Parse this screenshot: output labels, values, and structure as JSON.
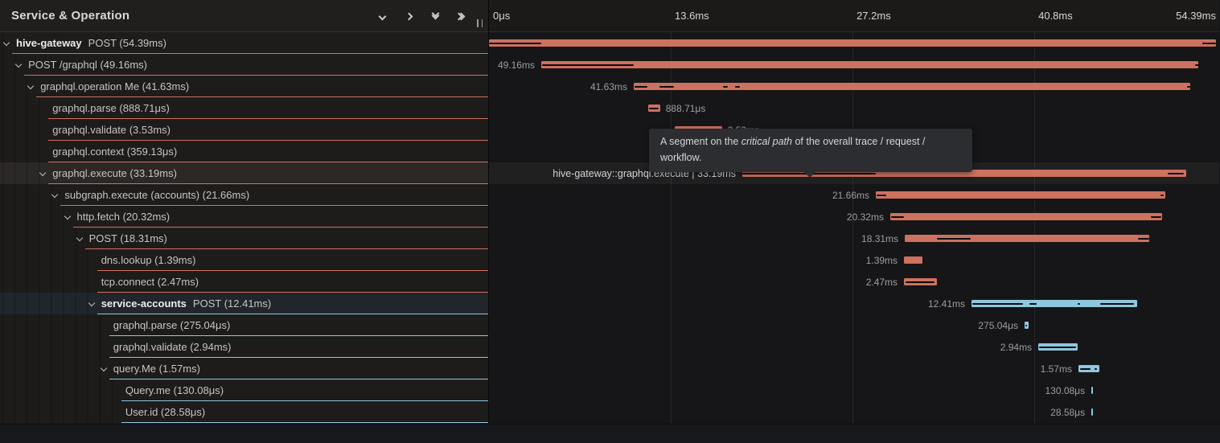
{
  "header": {
    "title": "Service & Operation",
    "ticks": [
      {
        "label": "0μs",
        "ms": 0
      },
      {
        "label": "13.6ms",
        "ms": 13.6
      },
      {
        "label": "27.2ms",
        "ms": 27.2
      },
      {
        "label": "40.8ms",
        "ms": 40.8
      },
      {
        "label": "54.39ms",
        "ms": 54.39,
        "align": "right"
      }
    ],
    "gridlines_ms": [
      13.6,
      27.2,
      40.8
    ],
    "icons": [
      "chevron-down",
      "chevron-right",
      "double-chevron-down",
      "double-chevron-right"
    ]
  },
  "tooltip": {
    "pre": "A segment on the ",
    "italic": "critical path",
    "post_line1": " of the overall trace / request /",
    "line2": "workflow."
  },
  "colors": {
    "salmon": "#ce715f",
    "blue": "#8dc8e0",
    "critical_path": "#0b0b0c"
  },
  "trace": {
    "total_ms": 54.39,
    "rows": [
      {
        "service": "hive-gateway",
        "text": "POST (54.39ms)",
        "level": 0,
        "chevron": true,
        "svc": "salmon",
        "bar": {
          "start": 0,
          "dur": 54.39,
          "label": "",
          "side": "left",
          "critical": [
            [
              0,
              3.91
            ],
            [
              53.35,
              54.39
            ]
          ]
        }
      },
      {
        "text": "POST /graphql (49.16ms)",
        "level": 1,
        "chevron": true,
        "svc": "salmon",
        "bar": {
          "start": 3.91,
          "dur": 49.16,
          "label": "49.16ms",
          "side": "left",
          "critical": [
            [
              3.97,
              10.83
            ],
            [
              52.8,
              53.18
            ]
          ]
        }
      },
      {
        "text": "graphql.operation Me (41.63ms)",
        "level": 2,
        "chevron": true,
        "svc": "salmon",
        "bar": {
          "start": 10.83,
          "dur": 41.63,
          "label": "41.63ms",
          "side": "left",
          "critical": [
            [
              10.89,
              11.85
            ],
            [
              12.76,
              13.84
            ],
            [
              17.5,
              17.88
            ],
            [
              18.41,
              18.78
            ],
            [
              52.2,
              52.46
            ]
          ]
        }
      },
      {
        "text": "graphql.parse (888.71μs)",
        "level": 3,
        "chevron": false,
        "svc": "salmon",
        "bar": {
          "start": 11.91,
          "dur": 0.88871,
          "label": "888.71μs",
          "side": "right",
          "critical": [
            [
              11.98,
              12.72
            ]
          ]
        }
      },
      {
        "text": "graphql.validate (3.53ms)",
        "level": 3,
        "chevron": false,
        "svc": "salmon",
        "bar": {
          "start": 13.9,
          "dur": 3.53,
          "label": "3.53ms",
          "side": "right",
          "critical": [
            [
              13.98,
              17.32
            ]
          ]
        }
      },
      {
        "text": "graphql.context (359.13μs)",
        "level": 3,
        "chevron": false,
        "svc": "salmon",
        "bar": {
          "start": 17.45,
          "dur": 0.35913,
          "label": "359.13μs",
          "side": "right",
          "critical": [
            [
              17.5,
              17.72
            ]
          ]
        }
      },
      {
        "text": "graphql.execute (33.19ms)",
        "level": 3,
        "chevron": true,
        "svc": "salmon",
        "highlight": true,
        "bar": {
          "start": 18.95,
          "dur": 33.19,
          "label": "hive-gateway::graphql.execute | 33.19ms",
          "side": "left",
          "bright": true,
          "critical": [
            [
              18.98,
              28.95
            ],
            [
              50.78,
              52.0
            ]
          ]
        }
      },
      {
        "text": "subgraph.execute (accounts) (21.66ms)",
        "level": 4,
        "chevron": true,
        "svc": "salmon",
        "bar": {
          "start": 28.94,
          "dur": 21.66,
          "label": "21.66ms",
          "side": "left",
          "critical": [
            [
              29.0,
              29.72
            ],
            [
              50.24,
              50.5
            ]
          ]
        }
      },
      {
        "text": "http.fetch (20.32ms)",
        "level": 5,
        "chevron": true,
        "svc": "salmon",
        "bar": {
          "start": 30.02,
          "dur": 20.32,
          "label": "20.32ms",
          "side": "left",
          "critical": [
            [
              30.08,
              31.05
            ],
            [
              49.52,
              50.3
            ]
          ]
        }
      },
      {
        "text": "POST (18.31ms)",
        "level": 6,
        "chevron": true,
        "svc": "salmon",
        "bar": {
          "start": 31.11,
          "dur": 18.31,
          "label": "18.31ms",
          "side": "left",
          "critical": [
            [
              33.52,
              36.04
            ],
            [
              48.56,
              49.4
            ]
          ]
        }
      },
      {
        "text": "dns.lookup (1.39ms)",
        "level": 7,
        "chevron": false,
        "svc": "salmon",
        "bar": {
          "start": 31.05,
          "dur": 1.39,
          "label": "1.39ms",
          "side": "left",
          "critical": []
        }
      },
      {
        "text": "tcp.connect (2.47ms)",
        "level": 7,
        "chevron": false,
        "svc": "salmon",
        "bar": {
          "start": 31.05,
          "dur": 2.47,
          "label": "2.47ms",
          "side": "left",
          "critical": [
            [
              31.17,
              33.35
            ]
          ]
        }
      },
      {
        "service": "service-accounts",
        "text": "POST (12.41ms)",
        "level": 7,
        "chevron": true,
        "svc": "blue",
        "tint": true,
        "bar": {
          "start": 36.1,
          "dur": 12.41,
          "label": "12.41ms",
          "side": "left",
          "critical": [
            [
              36.16,
              39.98
            ],
            [
              40.43,
              40.97
            ],
            [
              44.04,
              44.22
            ],
            [
              45.73,
              48.25
            ]
          ]
        }
      },
      {
        "text": "graphql.parse (275.04μs)",
        "level": 8,
        "chevron": false,
        "svc": "blue",
        "bar": {
          "start": 40.07,
          "dur": 0.27504,
          "label": "275.04μs",
          "side": "left",
          "critical": [
            [
              40.13,
              40.22
            ]
          ]
        }
      },
      {
        "text": "graphql.validate (2.94ms)",
        "level": 8,
        "chevron": false,
        "svc": "blue",
        "bar": {
          "start": 41.1,
          "dur": 2.94,
          "label": "2.94ms",
          "side": "left",
          "critical": [
            [
              41.16,
              43.9
            ]
          ]
        }
      },
      {
        "text": "query.Me (1.57ms)",
        "level": 8,
        "chevron": true,
        "svc": "blue",
        "bar": {
          "start": 44.1,
          "dur": 1.57,
          "label": "1.57ms",
          "side": "left",
          "critical": [
            [
              44.2,
              45.0
            ],
            [
              45.28,
              45.48
            ]
          ]
        }
      },
      {
        "text": "Query.me (130.08μs)",
        "level": 9,
        "chevron": false,
        "svc": "blue",
        "bar": {
          "start": 45.07,
          "dur": 0.13008,
          "label": "130.08μs",
          "side": "left",
          "critical": []
        }
      },
      {
        "text": "User.id (28.58μs)",
        "level": 9,
        "chevron": false,
        "svc": "blue",
        "bar": {
          "start": 45.07,
          "dur": 0.02858,
          "label": "28.58μs",
          "side": "left",
          "critical": []
        }
      }
    ]
  }
}
